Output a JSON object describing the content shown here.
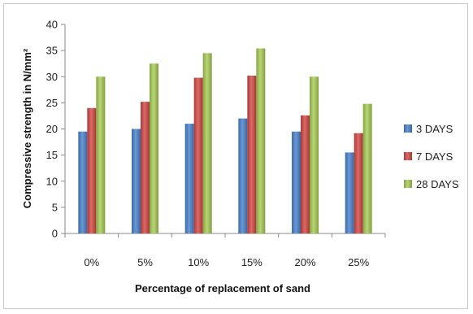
{
  "chart_data": {
    "type": "bar",
    "title": "",
    "xlabel": "Percentage of replacement of sand",
    "ylabel": "Compressive strength in N/mm²",
    "ylim": [
      0,
      40
    ],
    "yticks": [
      0,
      5,
      10,
      15,
      20,
      25,
      30,
      35,
      40
    ],
    "grid": false,
    "legend": "right",
    "categories": [
      "0%",
      "5%",
      "10%",
      "15%",
      "20%",
      "25%"
    ],
    "series": [
      {
        "name": "3 DAYS",
        "color": "#4a7ebb",
        "values": [
          19.5,
          20,
          21,
          22,
          19.5,
          15.5
        ]
      },
      {
        "name": "7 DAYS",
        "color": "#be4b48",
        "values": [
          24,
          25.2,
          29.8,
          30.2,
          22.6,
          19.2
        ]
      },
      {
        "name": "28 DAYS",
        "color": "#98b954",
        "values": [
          30,
          32.5,
          34.5,
          35.4,
          30,
          24.8
        ]
      }
    ]
  }
}
